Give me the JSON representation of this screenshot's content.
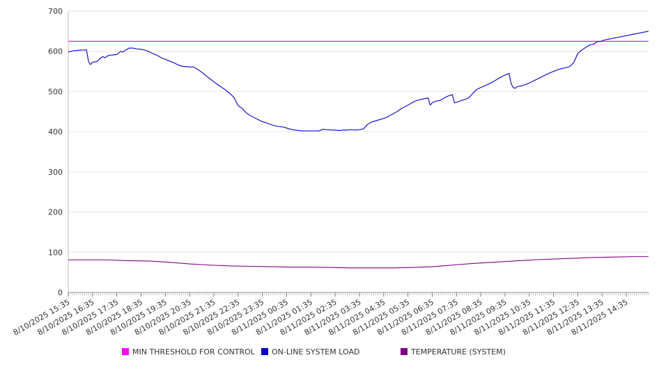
{
  "chart_data": {
    "type": "line",
    "title": "",
    "xlabel": "",
    "ylabel": "",
    "ylim": [
      0,
      700
    ],
    "yticks": [
      0,
      100,
      200,
      300,
      400,
      500,
      600,
      700
    ],
    "grid": "horizontal",
    "legend_position": "bottom",
    "x_interval_minutes": 5,
    "x_start_index": 0,
    "x_end_index": 287,
    "xtick_labels": [
      "8/10/2025 15:35",
      "8/10/2025 16:35",
      "8/10/2025 17:35",
      "8/10/2025 18:35",
      "8/10/2025 19:35",
      "8/10/2025 20:35",
      "8/10/2025 21:35",
      "8/10/2025 22:35",
      "8/10/2025 23:35",
      "8/11/2025 00:35",
      "8/11/2025 01:35",
      "8/11/2025 02:35",
      "8/11/2025 03:35",
      "8/11/2025 04:35",
      "8/11/2025 05:35",
      "8/11/2025 06:35",
      "8/11/2025 07:35",
      "8/11/2025 08:35",
      "8/11/2025 09:35",
      "8/11/2025 10:35",
      "8/11/2025 11:35",
      "8/11/2025 12:35",
      "8/11/2025 13:35",
      "8/11/2025 14:35"
    ],
    "series": [
      {
        "name": "MIN THRESHOLD FOR CONTROL",
        "color": "#ff00ff",
        "points": [
          [
            0,
            625
          ],
          [
            287,
            625
          ]
        ]
      },
      {
        "name": "ON-LINE SYSTEM LOAD",
        "color": "#0000cc",
        "points": [
          [
            0,
            598
          ],
          [
            2,
            601
          ],
          [
            4,
            602
          ],
          [
            6,
            603
          ],
          [
            8,
            603
          ],
          [
            9,
            604
          ],
          [
            10,
            575
          ],
          [
            11,
            567
          ],
          [
            12,
            573
          ],
          [
            14,
            574
          ],
          [
            16,
            583
          ],
          [
            17,
            587
          ],
          [
            18,
            584
          ],
          [
            20,
            590
          ],
          [
            22,
            591
          ],
          [
            24,
            592
          ],
          [
            26,
            600
          ],
          [
            27,
            598
          ],
          [
            28,
            602
          ],
          [
            30,
            608
          ],
          [
            32,
            608
          ],
          [
            34,
            606
          ],
          [
            36,
            605
          ],
          [
            38,
            603
          ],
          [
            40,
            599
          ],
          [
            42,
            594
          ],
          [
            44,
            590
          ],
          [
            46,
            584
          ],
          [
            48,
            580
          ],
          [
            50,
            576
          ],
          [
            52,
            572
          ],
          [
            54,
            567
          ],
          [
            56,
            563
          ],
          [
            58,
            562
          ],
          [
            60,
            561
          ],
          [
            62,
            561
          ],
          [
            64,
            555
          ],
          [
            66,
            548
          ],
          [
            68,
            540
          ],
          [
            70,
            532
          ],
          [
            72,
            524
          ],
          [
            74,
            517
          ],
          [
            76,
            510
          ],
          [
            78,
            503
          ],
          [
            80,
            495
          ],
          [
            82,
            485
          ],
          [
            84,
            465
          ],
          [
            86,
            458
          ],
          [
            88,
            447
          ],
          [
            90,
            440
          ],
          [
            92,
            435
          ],
          [
            94,
            430
          ],
          [
            96,
            425
          ],
          [
            98,
            422
          ],
          [
            100,
            418
          ],
          [
            102,
            415
          ],
          [
            104,
            413
          ],
          [
            106,
            412
          ],
          [
            108,
            409
          ],
          [
            110,
            406
          ],
          [
            112,
            404
          ],
          [
            114,
            403
          ],
          [
            116,
            402
          ],
          [
            118,
            402
          ],
          [
            120,
            402
          ],
          [
            122,
            402
          ],
          [
            124,
            402
          ],
          [
            126,
            406
          ],
          [
            128,
            405
          ],
          [
            130,
            404
          ],
          [
            132,
            404
          ],
          [
            134,
            403
          ],
          [
            136,
            404
          ],
          [
            138,
            404
          ],
          [
            140,
            405
          ],
          [
            142,
            404
          ],
          [
            144,
            405
          ],
          [
            146,
            407
          ],
          [
            148,
            418
          ],
          [
            150,
            424
          ],
          [
            152,
            427
          ],
          [
            154,
            430
          ],
          [
            156,
            433
          ],
          [
            158,
            437
          ],
          [
            160,
            443
          ],
          [
            162,
            448
          ],
          [
            164,
            455
          ],
          [
            166,
            461
          ],
          [
            168,
            466
          ],
          [
            170,
            472
          ],
          [
            172,
            477
          ],
          [
            174,
            480
          ],
          [
            176,
            482
          ],
          [
            178,
            484
          ],
          [
            179,
            466
          ],
          [
            180,
            472
          ],
          [
            182,
            476
          ],
          [
            184,
            478
          ],
          [
            186,
            484
          ],
          [
            188,
            489
          ],
          [
            190,
            492
          ],
          [
            191,
            472
          ],
          [
            192,
            473
          ],
          [
            194,
            477
          ],
          [
            196,
            480
          ],
          [
            198,
            484
          ],
          [
            200,
            495
          ],
          [
            202,
            505
          ],
          [
            204,
            510
          ],
          [
            206,
            514
          ],
          [
            208,
            519
          ],
          [
            210,
            524
          ],
          [
            212,
            530
          ],
          [
            214,
            536
          ],
          [
            216,
            541
          ],
          [
            218,
            545
          ],
          [
            219,
            520
          ],
          [
            220,
            510
          ],
          [
            221,
            508
          ],
          [
            222,
            512
          ],
          [
            224,
            514
          ],
          [
            226,
            517
          ],
          [
            228,
            521
          ],
          [
            230,
            526
          ],
          [
            232,
            531
          ],
          [
            234,
            536
          ],
          [
            236,
            541
          ],
          [
            238,
            546
          ],
          [
            240,
            550
          ],
          [
            242,
            554
          ],
          [
            244,
            557
          ],
          [
            246,
            559
          ],
          [
            248,
            562
          ],
          [
            250,
            572
          ],
          [
            252,
            595
          ],
          [
            254,
            603
          ],
          [
            256,
            610
          ],
          [
            258,
            616
          ],
          [
            260,
            618
          ],
          [
            261,
            622
          ],
          [
            262,
            625
          ],
          [
            263,
            624
          ],
          [
            264,
            626
          ],
          [
            265,
            628
          ],
          [
            266,
            629
          ],
          [
            267,
            630
          ],
          [
            268,
            631
          ],
          [
            269,
            632
          ],
          [
            270,
            633
          ],
          [
            271,
            634
          ],
          [
            272,
            635
          ],
          [
            273,
            636
          ],
          [
            274,
            637
          ],
          [
            275,
            638
          ],
          [
            276,
            639
          ],
          [
            277,
            640
          ],
          [
            278,
            641
          ],
          [
            279,
            642
          ],
          [
            280,
            643
          ],
          [
            281,
            644
          ],
          [
            282,
            645
          ],
          [
            283,
            646
          ],
          [
            284,
            647
          ],
          [
            285,
            648
          ],
          [
            286,
            649
          ],
          [
            287,
            650
          ]
        ]
      },
      {
        "name": "TEMPERATURE (SYSTEM)",
        "color": "#800080",
        "points": [
          [
            0,
            81
          ],
          [
            10,
            81
          ],
          [
            20,
            81
          ],
          [
            24,
            80
          ],
          [
            30,
            79
          ],
          [
            40,
            78
          ],
          [
            50,
            75
          ],
          [
            60,
            71
          ],
          [
            70,
            68
          ],
          [
            80,
            66
          ],
          [
            90,
            65
          ],
          [
            100,
            64
          ],
          [
            110,
            63
          ],
          [
            120,
            63
          ],
          [
            130,
            62
          ],
          [
            140,
            61
          ],
          [
            150,
            61
          ],
          [
            160,
            61
          ],
          [
            170,
            62
          ],
          [
            180,
            64
          ],
          [
            190,
            68
          ],
          [
            200,
            72
          ],
          [
            210,
            75
          ],
          [
            220,
            78
          ],
          [
            230,
            81
          ],
          [
            240,
            83
          ],
          [
            250,
            85
          ],
          [
            260,
            87
          ],
          [
            270,
            88
          ],
          [
            280,
            89
          ],
          [
            287,
            89
          ]
        ]
      }
    ]
  }
}
